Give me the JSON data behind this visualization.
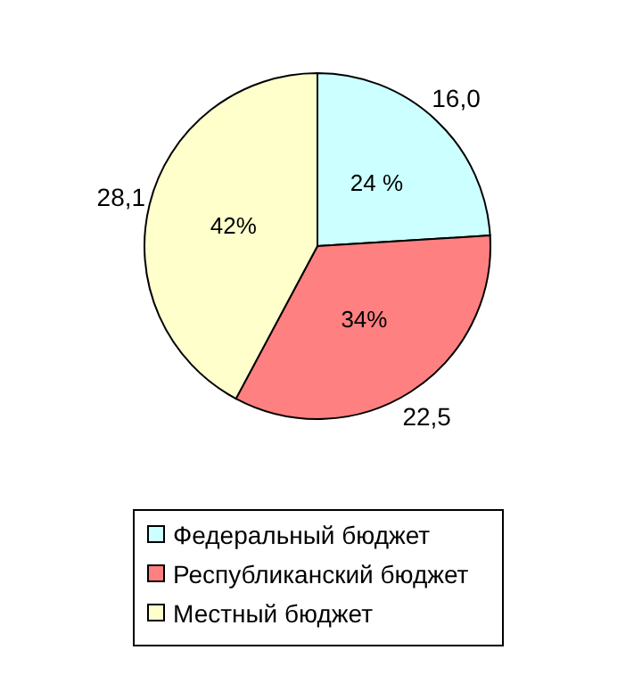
{
  "chart_data": {
    "type": "pie",
    "categories": [
      "Федеральный бюджет",
      "Республиканский бюджет",
      "Местный бюджет"
    ],
    "values": [
      16.0,
      22.5,
      28.1
    ],
    "value_labels": [
      "16,0",
      "22,5",
      "28,1"
    ],
    "colors": [
      "#ccffff",
      "#ff8080",
      "#ffffcc"
    ],
    "annotations": [
      "24 %",
      "34%",
      "42%"
    ],
    "legend": "bottom"
  }
}
